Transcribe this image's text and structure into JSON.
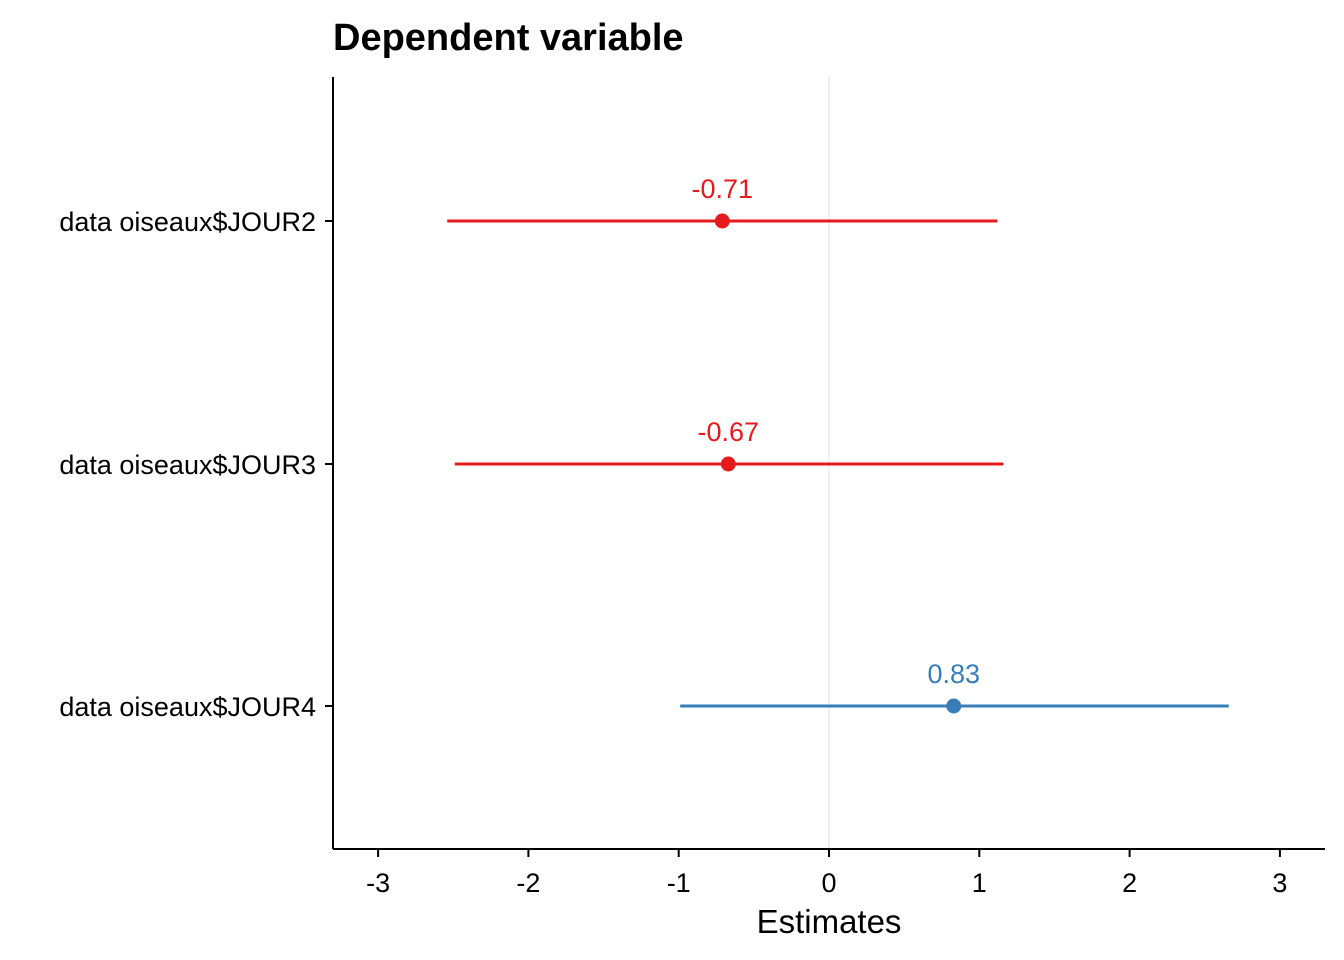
{
  "chart_data": {
    "type": "scatter",
    "title": "Dependent variable",
    "xlabel": "Estimates",
    "ylabel": "",
    "xlim": [
      -3.3,
      3.3
    ],
    "x_ticks": [
      "-3",
      "-2",
      "-1",
      "0",
      "1",
      "2",
      "3"
    ],
    "x_tick_values": [
      -3,
      -2,
      -1,
      0,
      1,
      2,
      3
    ],
    "grid": false,
    "legend": "none",
    "terms": [
      {
        "label": "data oiseaux$JOUR2",
        "estimate": -0.71,
        "value_label": "-0.71",
        "ci": [
          -2.54,
          1.12
        ],
        "color": "#E41A1C"
      },
      {
        "label": "data oiseaux$JOUR3",
        "estimate": -0.67,
        "value_label": "-0.67",
        "ci": [
          -2.49,
          1.16
        ],
        "color": "#E41A1C"
      },
      {
        "label": "data oiseaux$JOUR4",
        "estimate": 0.83,
        "value_label": "0.83",
        "ci": [
          -0.99,
          2.66
        ],
        "color": "#377EB8"
      }
    ],
    "zero_line_color": "#ebebeb"
  }
}
